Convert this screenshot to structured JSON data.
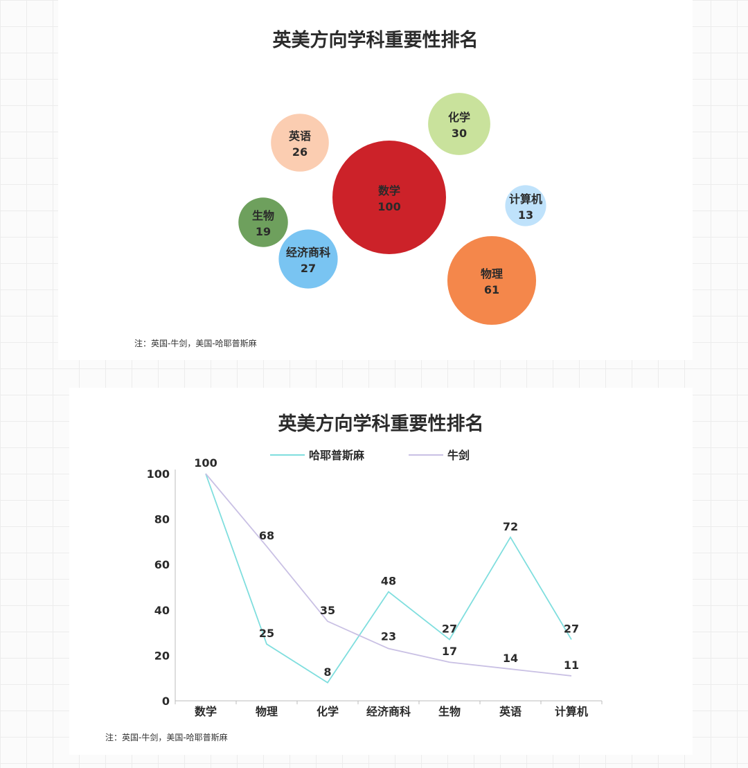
{
  "charts": [
    {
      "chart_data": {
        "type": "bubble",
        "title": "英美方向学科重要性排名",
        "points": [
          {
            "label": "数学",
            "value": 100,
            "color": "#cc2229"
          },
          {
            "label": "物理",
            "value": 61,
            "color": "#f4874b"
          },
          {
            "label": "化学",
            "value": 30,
            "color": "#c9e29c"
          },
          {
            "label": "经济商科",
            "value": 27,
            "color": "#79c4f2"
          },
          {
            "label": "英语",
            "value": 26,
            "color": "#fbcdb1"
          },
          {
            "label": "生物",
            "value": 19,
            "color": "#6ea05d"
          },
          {
            "label": "计算机",
            "value": 13,
            "color": "#bfe2fb"
          }
        ]
      },
      "note": "注：英国-牛剑，美国-哈耶普斯麻"
    },
    {
      "chart_data": {
        "type": "line",
        "title": "英美方向学科重要性排名",
        "categories": [
          "数学",
          "物理",
          "化学",
          "经济商科",
          "生物",
          "英语",
          "计算机"
        ],
        "series": [
          {
            "name": "哈耶普斯麻",
            "values": [
              100,
              25,
              8,
              48,
              27,
              72,
              27
            ],
            "color": "#7fdede"
          },
          {
            "name": "牛剑",
            "values": [
              100,
              68,
              35,
              23,
              17,
              14,
              11
            ],
            "color": "#c9c0e4"
          }
        ],
        "ylim": [
          0,
          100
        ],
        "yticks": [
          0,
          20,
          40,
          60,
          80,
          100
        ],
        "legend": "top-center"
      },
      "note": "注：英国-牛剑，美国-哈耶普斯麻"
    }
  ]
}
